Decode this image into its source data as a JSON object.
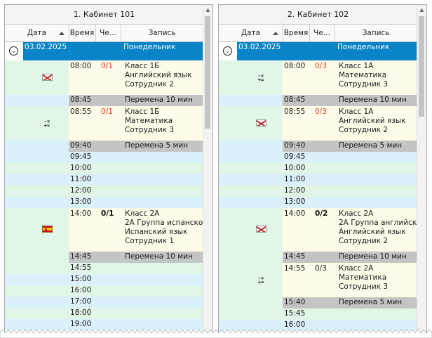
{
  "panels": [
    {
      "title": "1. Кабинет 101",
      "columns": [
        "Дата",
        "Время",
        "Че...",
        "Запись"
      ],
      "day": {
        "date": "03.02.2025",
        "weekday": "Понедельник"
      },
      "rows": [
        {
          "time": "08:00",
          "count": "0/1",
          "count_style": "red",
          "lines": [
            "Класс 1Б",
            "Английский язык",
            "Сотрудник 2"
          ],
          "icon": "uk-flag-icon"
        },
        {
          "time": "08:45",
          "lines": [
            "Перемена 10 мин"
          ],
          "kind": "break"
        },
        {
          "time": "08:55",
          "count": "0/1",
          "count_style": "red",
          "lines": [
            "Класс 1Б",
            "Математика",
            "Сотрудник 3"
          ],
          "icon": "math-icon"
        },
        {
          "time": "09:40",
          "lines": [
            "Перемена 5 мин"
          ],
          "kind": "break"
        },
        {
          "time": "09:45"
        },
        {
          "time": "10:00"
        },
        {
          "time": "11:00"
        },
        {
          "time": "12:00"
        },
        {
          "time": "13:00"
        },
        {
          "time": "14:00",
          "count": "0/1",
          "count_style": "bold",
          "lines": [
            "Класс 2А",
            "2А Группа испанского",
            "Испанский язык",
            "Сотрудник 1"
          ],
          "icon": "spain-flag-icon"
        },
        {
          "time": "14:45",
          "lines": [
            "Перемена 10 мин"
          ],
          "kind": "break"
        },
        {
          "time": "14:55"
        },
        {
          "time": "15:00"
        },
        {
          "time": "16:00"
        },
        {
          "time": "17:00"
        },
        {
          "time": "18:00"
        },
        {
          "time": "19:00"
        }
      ]
    },
    {
      "title": "2. Кабинет 102",
      "columns": [
        "Дата",
        "Время",
        "Че...",
        "Запись"
      ],
      "day": {
        "date": "03.02.2025",
        "weekday": "Понедельник"
      },
      "rows": [
        {
          "time": "08:00",
          "count": "0/3",
          "count_style": "red",
          "lines": [
            "Класс 1А",
            "Математика",
            "Сотрудник 3"
          ],
          "icon": "math-icon"
        },
        {
          "time": "08:45",
          "lines": [
            "Перемена 10 мин"
          ],
          "kind": "break"
        },
        {
          "time": "08:55",
          "count": "0/3",
          "count_style": "red",
          "lines": [
            "Класс 1А",
            "Английский язык",
            "Сотрудник 2"
          ],
          "icon": "uk-flag-icon"
        },
        {
          "time": "09:40",
          "lines": [
            "Перемена 5 мин"
          ],
          "kind": "break"
        },
        {
          "time": "09:45"
        },
        {
          "time": "10:00"
        },
        {
          "time": "11:00"
        },
        {
          "time": "12:00"
        },
        {
          "time": "13:00"
        },
        {
          "time": "14:00",
          "count": "0/2",
          "count_style": "bold",
          "lines": [
            "Класс 2А",
            "2А Группа английского",
            "Английский язык",
            "Сотрудник 2"
          ],
          "icon": "uk-flag-icon"
        },
        {
          "time": "14:45",
          "lines": [
            "Перемена 10 мин"
          ],
          "kind": "break"
        },
        {
          "time": "14:55",
          "count": "0/3",
          "count_style": "plain",
          "lines": [
            "Класс 2А",
            "Математика",
            "Сотрудник 3"
          ],
          "icon": "math-icon"
        },
        {
          "time": "15:40",
          "lines": [
            "Перемена 5 мин"
          ],
          "kind": "break"
        },
        {
          "time": "15:45"
        },
        {
          "time": "16:00"
        }
      ]
    }
  ],
  "colors": {
    "day_header": "#0a84c8",
    "break_row": "#c4c4c4",
    "empty_slot_even": "#daf0fa",
    "empty_slot_odd": "#e2f6e8",
    "lesson_time": "#ddeefb",
    "lesson_body": "#fefce8",
    "count_red": "#e0402a"
  }
}
